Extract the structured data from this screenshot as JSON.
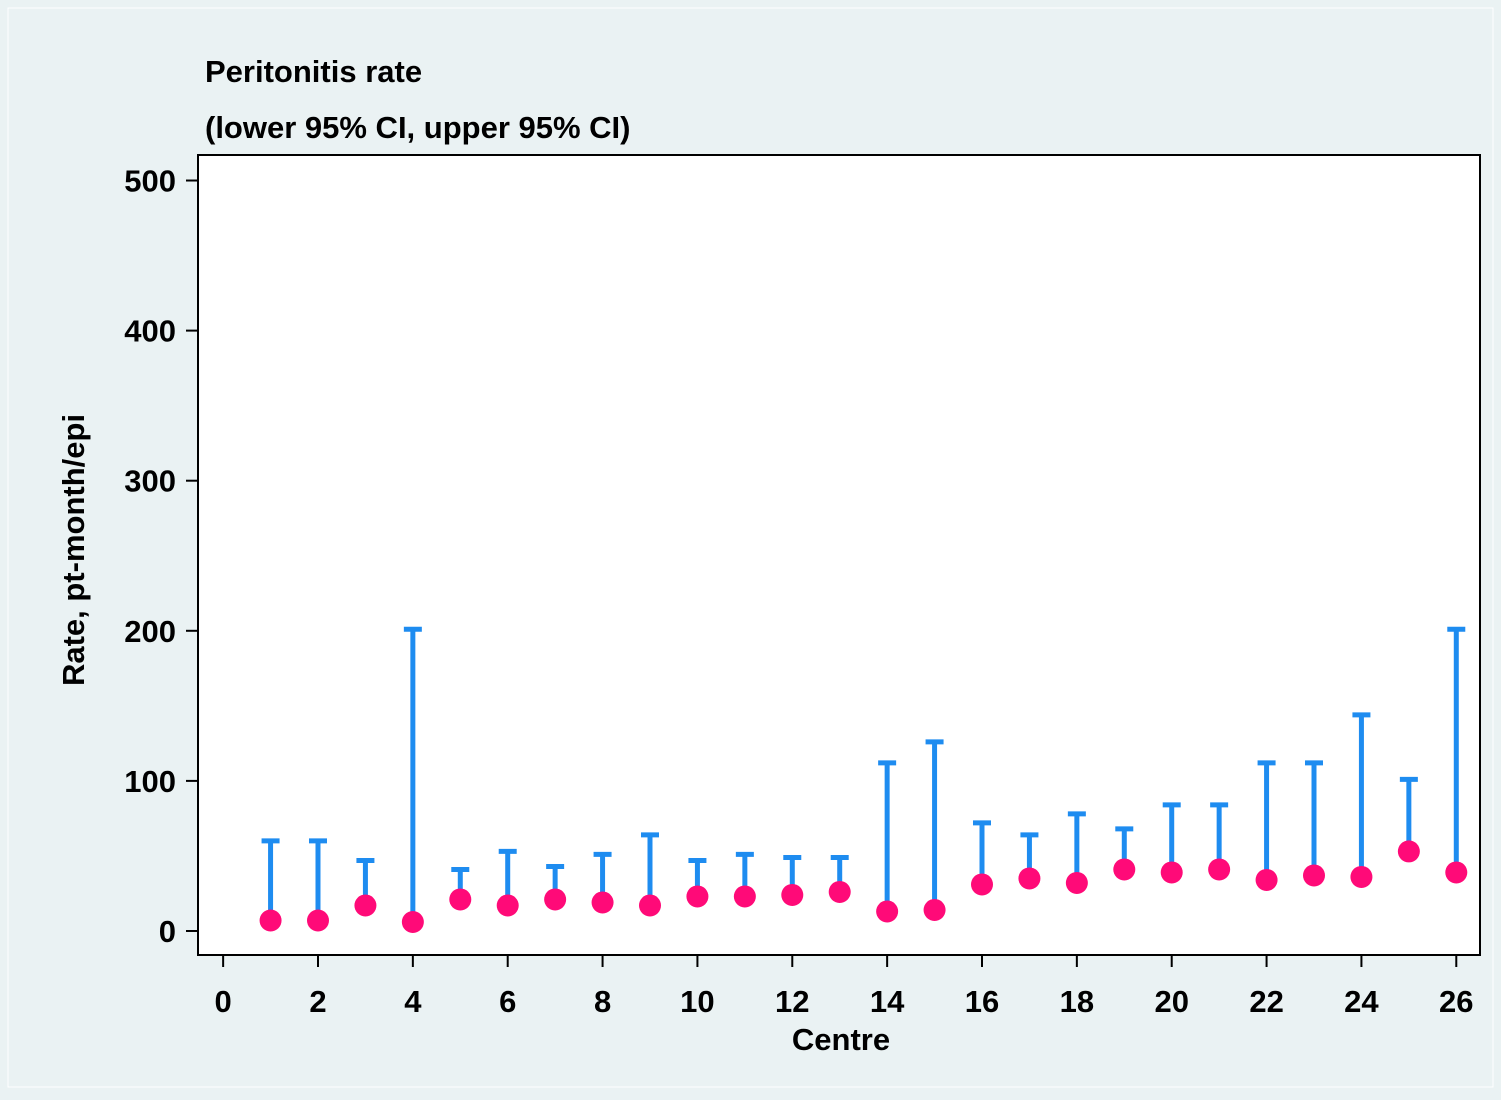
{
  "chart_data": {
    "type": "range_cap",
    "title": "Peritonitis rate",
    "subtitle": "(lower 95% CI, upper 95% CI)",
    "x_label": "Centre",
    "y_label": "Rate, pt-month/epi",
    "x": [
      1,
      2,
      3,
      4,
      5,
      6,
      7,
      8,
      9,
      10,
      11,
      12,
      13,
      14,
      15,
      16,
      17,
      18,
      19,
      20,
      21,
      22,
      23,
      24,
      25,
      26
    ],
    "lower": [
      7,
      7,
      17,
      6,
      21,
      17,
      21,
      19,
      17,
      23,
      23,
      24,
      26,
      13,
      14,
      31,
      35,
      32,
      41,
      39,
      41,
      34,
      37,
      36,
      53,
      39
    ],
    "upper": [
      60,
      60,
      47,
      201,
      41,
      53,
      43,
      51,
      64,
      47,
      51,
      49,
      49,
      112,
      126,
      72,
      64,
      78,
      68,
      84,
      84,
      112,
      112,
      144,
      101,
      201
    ],
    "point_color": "#ff0a78",
    "bar_color": "#1e8cf0",
    "xlim": [
      -0.53,
      26.5
    ],
    "ylim": [
      -16,
      517
    ],
    "xticks": [
      0,
      2,
      4,
      6,
      8,
      10,
      12,
      14,
      16,
      18,
      20,
      22,
      24,
      26
    ],
    "yticks": [
      0,
      100,
      200,
      300,
      400,
      500
    ],
    "grid": false
  }
}
